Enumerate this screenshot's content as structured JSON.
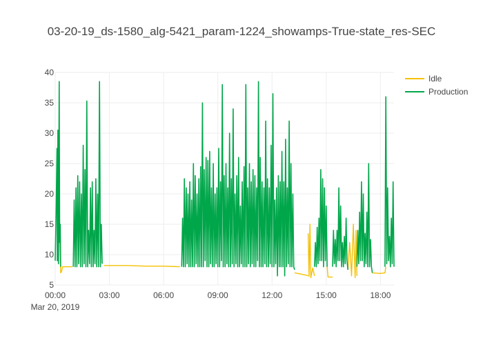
{
  "chart_data": {
    "type": "line",
    "title": "03-20-19_ds-1580_alg-5421_param-1224_showamps-True-state_res-SEC",
    "xlabel": "",
    "ylabel": "",
    "x_date_label": "Mar 20, 2019",
    "x_ticks": [
      {
        "label": "00:00",
        "hour": 0
      },
      {
        "label": "03:00",
        "hour": 3
      },
      {
        "label": "06:00",
        "hour": 6
      },
      {
        "label": "09:00",
        "hour": 9
      },
      {
        "label": "12:00",
        "hour": 12
      },
      {
        "label": "15:00",
        "hour": 15
      },
      {
        "label": "18:00",
        "hour": 18
      }
    ],
    "xlim_hours": [
      0,
      18.75
    ],
    "ylim": [
      5,
      40
    ],
    "y_ticks": [
      5,
      10,
      15,
      20,
      25,
      30,
      35,
      40
    ],
    "grid": true,
    "legend_position": "top-right",
    "series": [
      {
        "name": "Idle",
        "color": "#f5c000",
        "segments": [
          [
            [
              0.22,
              14.5
            ],
            [
              0.3,
              7.0
            ],
            [
              0.35,
              7.2
            ],
            [
              0.4,
              8.0
            ],
            [
              0.95,
              8.0
            ]
          ],
          [
            [
              2.7,
              8.2
            ],
            [
              4.0,
              8.2
            ],
            [
              5.0,
              8.1
            ],
            [
              6.0,
              8.1
            ],
            [
              6.9,
              8.0
            ]
          ],
          [
            [
              13.25,
              7.0
            ],
            [
              13.6,
              6.8
            ],
            [
              13.9,
              6.6
            ],
            [
              14.0,
              6.5
            ]
          ],
          [
            [
              14.0,
              13.5
            ],
            [
              14.05,
              6.4
            ],
            [
              14.1,
              15.0
            ],
            [
              14.15,
              6.2
            ],
            [
              14.25,
              7.8
            ],
            [
              14.35,
              6.5
            ]
          ],
          [
            [
              15.05,
              8.0
            ],
            [
              15.1,
              6.3
            ],
            [
              15.35,
              6.3
            ]
          ],
          [
            [
              16.2,
              7.5
            ],
            [
              16.3,
              12.0
            ],
            [
              16.4,
              6.5
            ],
            [
              16.5,
              15.0
            ],
            [
              16.6,
              6.2
            ],
            [
              16.65,
              14.0
            ],
            [
              16.7,
              6.5
            ]
          ],
          [
            [
              17.55,
              7.0
            ],
            [
              18.0,
              6.9
            ],
            [
              18.25,
              7.0
            ],
            [
              18.3,
              8.0
            ]
          ]
        ]
      },
      {
        "name": "Production",
        "color": "#00a64a",
        "segments": [
          [
            [
              0.0,
              9.0
            ],
            [
              0.05,
              17.0
            ],
            [
              0.1,
              27.5
            ],
            [
              0.12,
              9.0
            ],
            [
              0.15,
              30.5
            ],
            [
              0.18,
              8.5
            ],
            [
              0.2,
              22.5
            ],
            [
              0.22,
              38.5
            ],
            [
              0.25,
              12.0
            ],
            [
              0.28,
              15.0
            ],
            [
              0.3,
              8.0
            ]
          ],
          [
            [
              1.0,
              8.0
            ],
            [
              1.05,
              19.0
            ],
            [
              1.1,
              8.0
            ],
            [
              1.15,
              21.0
            ],
            [
              1.2,
              8.0
            ],
            [
              1.25,
              23.0
            ],
            [
              1.3,
              8.5
            ],
            [
              1.35,
              22.0
            ],
            [
              1.4,
              8.0
            ],
            [
              1.45,
              20.0
            ],
            [
              1.5,
              8.0
            ],
            [
              1.55,
              28.0
            ],
            [
              1.6,
              8.5
            ],
            [
              1.65,
              24.0
            ],
            [
              1.7,
              8.0
            ],
            [
              1.75,
              35.3
            ],
            [
              1.8,
              8.0
            ],
            [
              1.85,
              14.0
            ],
            [
              1.9,
              8.5
            ],
            [
              1.95,
              21.0
            ],
            [
              2.0,
              8.0
            ],
            [
              2.05,
              22.0
            ],
            [
              2.1,
              8.0
            ],
            [
              2.15,
              14.0
            ],
            [
              2.2,
              8.5
            ],
            [
              2.25,
              22.5
            ],
            [
              2.3,
              8.0
            ],
            [
              2.35,
              20.0
            ],
            [
              2.4,
              8.0
            ],
            [
              2.45,
              38.5
            ],
            [
              2.5,
              8.0
            ],
            [
              2.55,
              15.0
            ],
            [
              2.6,
              8.5
            ]
          ],
          [
            [
              7.0,
              8.0
            ],
            [
              7.05,
              16.0
            ],
            [
              7.1,
              8.0
            ],
            [
              7.15,
              22.5
            ],
            [
              7.2,
              8.0
            ],
            [
              7.25,
              21.0
            ],
            [
              7.3,
              8.5
            ],
            [
              7.35,
              20.0
            ],
            [
              7.4,
              8.0
            ],
            [
              7.45,
              22.0
            ],
            [
              7.5,
              8.0
            ],
            [
              7.55,
              19.0
            ],
            [
              7.6,
              8.0
            ],
            [
              7.65,
              25.0
            ],
            [
              7.7,
              8.0
            ],
            [
              7.75,
              23.0
            ],
            [
              7.8,
              8.5
            ],
            [
              7.85,
              20.0
            ],
            [
              7.9,
              8.0
            ],
            [
              7.95,
              22.5
            ],
            [
              8.0,
              8.0
            ],
            [
              8.05,
              24.5
            ],
            [
              8.1,
              8.0
            ],
            [
              8.15,
              35.0
            ],
            [
              8.2,
              8.0
            ],
            [
              8.25,
              24.0
            ],
            [
              8.3,
              9.0
            ],
            [
              8.35,
              26.0
            ],
            [
              8.4,
              8.0
            ],
            [
              8.45,
              25.5
            ],
            [
              8.5,
              8.0
            ],
            [
              8.55,
              27.0
            ],
            [
              8.6,
              8.5
            ],
            [
              8.65,
              21.0
            ],
            [
              8.7,
              8.0
            ],
            [
              8.75,
              25.0
            ],
            [
              8.8,
              8.0
            ],
            [
              8.85,
              20.0
            ],
            [
              8.9,
              8.5
            ],
            [
              8.95,
              21.0
            ],
            [
              9.0,
              8.0
            ],
            [
              9.05,
              27.5
            ],
            [
              9.1,
              8.0
            ],
            [
              9.15,
              22.0
            ],
            [
              9.2,
              9.0
            ],
            [
              9.25,
              38.0
            ],
            [
              9.3,
              8.0
            ],
            [
              9.35,
              23.0
            ],
            [
              9.4,
              8.0
            ],
            [
              9.45,
              25.0
            ],
            [
              9.5,
              8.5
            ],
            [
              9.55,
              21.0
            ],
            [
              9.6,
              8.0
            ],
            [
              9.65,
              30.0
            ],
            [
              9.7,
              8.0
            ],
            [
              9.75,
              22.5
            ],
            [
              9.8,
              8.5
            ],
            [
              9.85,
              34.0
            ],
            [
              9.9,
              8.0
            ],
            [
              9.95,
              20.0
            ],
            [
              10.0,
              8.5
            ],
            [
              10.05,
              23.0
            ],
            [
              10.1,
              8.0
            ],
            [
              10.15,
              26.0
            ],
            [
              10.2,
              8.0
            ],
            [
              10.25,
              18.0
            ],
            [
              10.3,
              8.5
            ],
            [
              10.35,
              22.0
            ],
            [
              10.4,
              8.0
            ],
            [
              10.45,
              24.5
            ],
            [
              10.5,
              8.0
            ],
            [
              10.55,
              38.0
            ],
            [
              10.6,
              8.0
            ],
            [
              10.65,
              21.0
            ],
            [
              10.7,
              8.5
            ],
            [
              10.75,
              25.0
            ],
            [
              10.8,
              8.0
            ],
            [
              10.85,
              22.0
            ],
            [
              10.9,
              8.5
            ],
            [
              10.95,
              24.0
            ],
            [
              11.0,
              8.0
            ],
            [
              11.05,
              23.0
            ],
            [
              11.1,
              8.0
            ],
            [
              11.15,
              21.0
            ],
            [
              11.2,
              9.0
            ],
            [
              11.25,
              38.5
            ],
            [
              11.3,
              8.0
            ],
            [
              11.35,
              26.0
            ],
            [
              11.4,
              8.0
            ],
            [
              11.45,
              22.0
            ],
            [
              11.5,
              8.0
            ],
            [
              11.55,
              21.0
            ],
            [
              11.6,
              8.5
            ],
            [
              11.65,
              32.0
            ],
            [
              11.7,
              8.0
            ],
            [
              11.75,
              22.5
            ],
            [
              11.8,
              8.0
            ],
            [
              11.85,
              21.0
            ],
            [
              11.9,
              8.5
            ],
            [
              11.95,
              28.0
            ],
            [
              12.0,
              8.0
            ],
            [
              12.05,
              36.5
            ],
            [
              12.1,
              8.0
            ],
            [
              12.15,
              19.0
            ],
            [
              12.2,
              8.5
            ],
            [
              12.25,
              21.0
            ],
            [
              12.3,
              6.5
            ],
            [
              12.35,
              23.0
            ],
            [
              12.4,
              8.0
            ],
            [
              12.45,
              22.0
            ],
            [
              12.5,
              8.0
            ],
            [
              12.55,
              27.0
            ],
            [
              12.6,
              8.0
            ],
            [
              12.65,
              22.0
            ],
            [
              12.7,
              6.5
            ],
            [
              12.75,
              29.0
            ],
            [
              12.8,
              8.0
            ],
            [
              12.85,
              21.0
            ],
            [
              12.9,
              8.5
            ],
            [
              12.95,
              32.0
            ],
            [
              13.0,
              8.0
            ],
            [
              13.05,
              25.0
            ],
            [
              13.1,
              8.0
            ],
            [
              13.15,
              20.0
            ],
            [
              13.2,
              8.0
            ],
            [
              13.25,
              7.5
            ]
          ],
          [
            [
              14.35,
              8.0
            ],
            [
              14.4,
              12.0
            ],
            [
              14.45,
              8.0
            ],
            [
              14.5,
              14.5
            ],
            [
              14.55,
              8.5
            ],
            [
              14.6,
              16.0
            ],
            [
              14.65,
              9.0
            ],
            [
              14.7,
              24.0
            ],
            [
              14.75,
              9.0
            ],
            [
              14.8,
              22.5
            ],
            [
              14.85,
              8.0
            ],
            [
              14.9,
              21.0
            ],
            [
              14.95,
              9.0
            ],
            [
              15.0,
              18.0
            ],
            [
              15.05,
              8.0
            ]
          ],
          [
            [
              15.35,
              8.0
            ],
            [
              15.4,
              14.0
            ],
            [
              15.45,
              8.5
            ],
            [
              15.5,
              12.5
            ],
            [
              15.55,
              8.0
            ],
            [
              15.6,
              14.0
            ],
            [
              15.65,
              9.0
            ],
            [
              15.7,
              21.0
            ],
            [
              15.75,
              9.0
            ],
            [
              15.8,
              18.0
            ],
            [
              15.85,
              8.0
            ],
            [
              15.9,
              12.0
            ],
            [
              15.95,
              8.0
            ],
            [
              16.0,
              13.0
            ],
            [
              16.05,
              8.5
            ],
            [
              16.1,
              16.0
            ],
            [
              16.15,
              9.0
            ],
            [
              16.2,
              7.5
            ]
          ],
          [
            [
              16.7,
              8.0
            ],
            [
              16.75,
              14.0
            ],
            [
              16.8,
              8.5
            ],
            [
              16.85,
              17.0
            ],
            [
              16.9,
              9.0
            ],
            [
              16.95,
              22.0
            ],
            [
              17.0,
              9.0
            ],
            [
              17.05,
              20.0
            ],
            [
              17.1,
              8.0
            ],
            [
              17.15,
              13.5
            ],
            [
              17.2,
              8.5
            ],
            [
              17.25,
              17.0
            ],
            [
              17.3,
              8.0
            ],
            [
              17.35,
              25.0
            ],
            [
              17.4,
              8.0
            ],
            [
              17.45,
              12.5
            ],
            [
              17.5,
              8.0
            ],
            [
              17.55,
              7.0
            ]
          ],
          [
            [
              18.25,
              8.0
            ],
            [
              18.3,
              36.0
            ],
            [
              18.35,
              8.5
            ],
            [
              18.4,
              21.0
            ],
            [
              18.45,
              9.0
            ],
            [
              18.5,
              13.0
            ],
            [
              18.55,
              8.0
            ],
            [
              18.6,
              16.0
            ],
            [
              18.65,
              8.5
            ],
            [
              18.7,
              22.0
            ],
            [
              18.75,
              8.0
            ]
          ]
        ]
      }
    ]
  }
}
